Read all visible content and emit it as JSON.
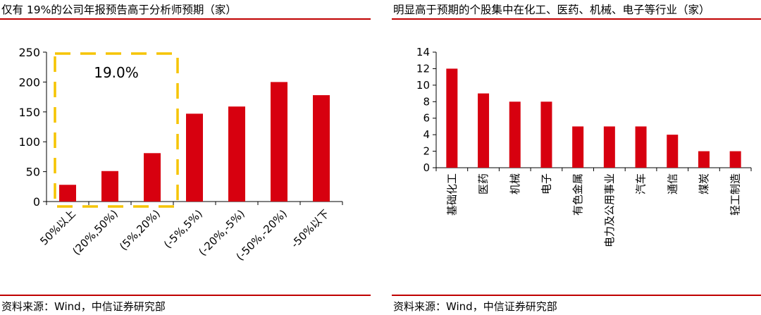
{
  "charts": [
    {
      "panel_title": "仅有 19%的公司年报预告高于分析师预期（家）",
      "source": "资料来源：Wind，中信证券研究部"
    },
    {
      "panel_title": "明显高于预期的个股集中在化工、医药、机械、电子等行业（家）",
      "source": "资料来源：Wind，中信证券研究部"
    }
  ],
  "chart_data": [
    {
      "type": "bar",
      "categories": [
        "50%以上",
        "(20%,50%)",
        "(5%,20%)",
        "(-5%,5%)",
        "(-20%,-5%)",
        "(-50%,-20%)",
        "-50%以下"
      ],
      "values": [
        28,
        51,
        81,
        147,
        159,
        200,
        178
      ],
      "ylim": [
        0,
        250
      ],
      "yticks": [
        0,
        50,
        100,
        150,
        200,
        250
      ],
      "bar_color": "#d7000f",
      "grid": false,
      "annotations": [
        {
          "text": "19.0%",
          "covers_categories": [
            "50%以上",
            "(20%,50%)",
            "(5%,20%)"
          ],
          "box_style": "dashed",
          "box_color": "#f5c400"
        }
      ]
    },
    {
      "type": "bar",
      "categories": [
        "基础化工",
        "医药",
        "机械",
        "电子",
        "有色金属",
        "电力及公用事业",
        "汽车",
        "通信",
        "煤炭",
        "轻工制造"
      ],
      "values": [
        12,
        9,
        8,
        8,
        5,
        5,
        5,
        4,
        2,
        2
      ],
      "ylim": [
        0,
        14
      ],
      "yticks": [
        0,
        2,
        4,
        6,
        8,
        10,
        12,
        14
      ],
      "bar_color": "#d7000f",
      "grid": false
    }
  ]
}
